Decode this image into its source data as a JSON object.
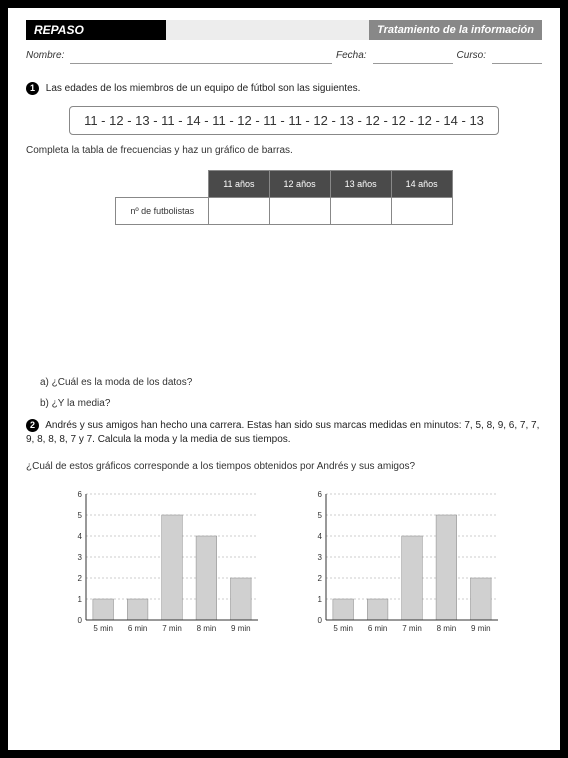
{
  "header": {
    "left": "REPASO",
    "right": "Tratamiento de la información"
  },
  "nameline": {
    "nombre": "Nombre:",
    "fecha": "Fecha:",
    "curso": "Curso:"
  },
  "q1": {
    "num": "1",
    "text": "Las edades de los miembros de un equipo de fútbol son las siguientes.",
    "data": "11 - 12 - 13 - 11 - 14 - 11 - 12 - 11 - 11 - 12 - 13 - 12 - 12 - 12 - 14 - 13",
    "instruction": "Completa la tabla de frecuencias y haz un gráfico de barras.",
    "table": {
      "headers": [
        "11 años",
        "12 años",
        "13 años",
        "14 años"
      ],
      "rowlabel": "nº de futbolistas"
    },
    "sub_a": "a)   ¿Cuál es la moda de los datos?",
    "sub_b": "b)   ¿Y la media?"
  },
  "q2": {
    "num": "2",
    "text": "Andrés y sus amigos han hecho una carrera. Estas han sido sus marcas medidas en minutos: 7, 5, 8, 9, 6, 7, 7, 9, 8, 8, 8, 7 y 7. Calcula la moda y la media de sus tiempos.",
    "sub": "¿Cuál de estos gráficos corresponde a los tiempos obtenidos por Andrés y sus amigos?"
  },
  "chartA": {
    "categories": [
      "5 min",
      "6 min",
      "7 min",
      "8 min",
      "9 min"
    ],
    "values": [
      1,
      1,
      5,
      4,
      2
    ],
    "ylim": [
      0,
      6
    ],
    "ytick_step": 1,
    "bar_color": "#d0d0d0",
    "grid_color": "#999999"
  },
  "chartB": {
    "categories": [
      "5 min",
      "6 min",
      "7 min",
      "8 min",
      "9 min"
    ],
    "values": [
      1,
      1,
      4,
      5,
      2
    ],
    "ylim": [
      0,
      6
    ],
    "ytick_step": 1,
    "bar_color": "#d0d0d0",
    "grid_color": "#999999"
  }
}
